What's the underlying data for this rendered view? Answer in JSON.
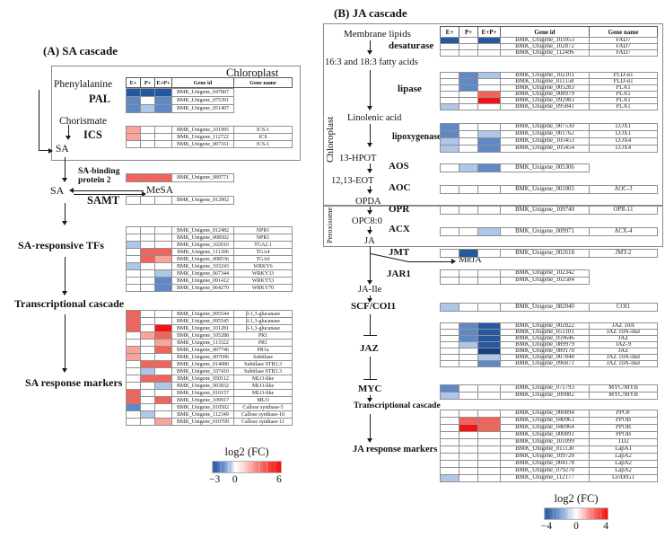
{
  "palette": {
    "w": "#ffffff",
    "b1": "#aec6e8",
    "b2": "#5f89c6",
    "b3": "#2458a0",
    "b4": "#16417e",
    "r1": "#f8a49a",
    "r2": "#f4635a",
    "r3": "#fa1010"
  },
  "figure": {
    "panel_a": {
      "title": "(A) SA cascade",
      "compartment_label": "Chloroplast",
      "header": {
        "e": "E+",
        "p": "P+",
        "ep": "E+P+",
        "gene_id": "Gene id",
        "gene_name": "Gene name"
      },
      "nodes": {
        "phenylalanine": "Phenylalanine",
        "pal": "PAL",
        "chorismate": "Chorismate",
        "ics": "ICS",
        "sa_top": "SA",
        "sa_mid": "SA",
        "sabp2_line1": "SA-binding",
        "sabp2_line2": "protein 2",
        "mesa": "MeSA",
        "samt": "SAMT",
        "tfs": "SA-responsive TFs",
        "cascade": "Transcriptional cascade",
        "markers": "SA response markers"
      },
      "legend": {
        "title": "log2 (FC)",
        "ticks": [
          "−3",
          "0",
          "6"
        ]
      },
      "blocks": {
        "pal": {
          "rows": [
            {
              "id": "BMK_Unigene_047807",
              "heat": [
                "b3",
                "b3",
                "b3"
              ]
            },
            {
              "id": "BMK_Unigene_075391",
              "heat": [
                "b2",
                "w",
                "b2"
              ]
            },
            {
              "id": "BMK_Unigene_051407",
              "heat": [
                "b2",
                "b1",
                "b2"
              ]
            }
          ]
        },
        "ics": {
          "rows": [
            {
              "id": "BMK_Unigene_101995",
              "name": "ICS-1",
              "heat": [
                "r1",
                "w",
                "w"
              ]
            },
            {
              "id": "BMK_Unigene_112722",
              "name": "ICS",
              "heat": [
                "r1",
                "w",
                "w"
              ]
            },
            {
              "id": "BMK_Unigene_007161",
              "name": "ICS-1",
              "heat": [
                "w",
                "w",
                "w"
              ]
            }
          ]
        },
        "sabp2": {
          "rows": [
            {
              "id": "BMK_Unigene_089771",
              "heat": [
                "r2",
                "r2",
                "r2"
              ]
            }
          ]
        },
        "samt": {
          "rows": [
            {
              "id": "BMK_Unigene_012902",
              "heat": [
                "w",
                "w",
                "w"
              ]
            }
          ]
        },
        "tfs": {
          "rows": [
            {
              "id": "BMK_Unigene_012482",
              "name": "NPR1",
              "heat": [
                "w",
                "w",
                "w"
              ]
            },
            {
              "id": "BMK_Unigene_008502",
              "name": "NPR1",
              "heat": [
                "w",
                "w",
                "w"
              ]
            },
            {
              "id": "BMK_Unigene_102016",
              "name": "TGA2.1",
              "heat": [
                "b1",
                "w",
                "w"
              ]
            },
            {
              "id": "BMK_Unigene_111306",
              "name": "TGA4",
              "heat": [
                "w",
                "r2",
                "r2"
              ]
            },
            {
              "id": "BMK_Unigene_008536",
              "name": "TGA6",
              "heat": [
                "w",
                "r2",
                "r1"
              ]
            },
            {
              "id": "BMK_Unigene_103243",
              "name": "WRKY6",
              "heat": [
                "b1",
                "w",
                "w"
              ]
            },
            {
              "id": "BMK_Unigene_067344",
              "name": "WRKY33",
              "heat": [
                "w",
                "w",
                "b1"
              ]
            },
            {
              "id": "BMK_Unigene_091412",
              "name": "WRKY53",
              "heat": [
                "w",
                "w",
                "b2"
              ]
            },
            {
              "id": "BMK_Unigene_064270",
              "name": "WRKY70",
              "heat": [
                "w",
                "w",
                "b2"
              ]
            }
          ]
        },
        "markers": {
          "rows": [
            {
              "id": "BMK_Unigene_095544",
              "name": "β-1,3-glucanase",
              "heat": [
                "r2",
                "w",
                "w"
              ]
            },
            {
              "id": "BMK_Unigene_095545",
              "name": "β-1,3-glucanase",
              "heat": [
                "r2",
                "w",
                "w"
              ]
            },
            {
              "id": "BMK_Unigene_101281",
              "name": "β-1,3-glucanase",
              "heat": [
                "r2",
                "w",
                "r3"
              ]
            },
            {
              "id": "BMK_Unigene_105288",
              "name": "PR1",
              "heat": [
                "w",
                "r1",
                "r2"
              ]
            },
            {
              "id": "BMK_Unigene_113322",
              "name": "PR1",
              "heat": [
                "w",
                "w",
                "r1"
              ]
            },
            {
              "id": "BMK_Unigene_007746",
              "name": "PR1a",
              "heat": [
                "r1",
                "w",
                "r2"
              ]
            },
            {
              "id": "BMK_Unigene_007696",
              "name": "Subtilase",
              "heat": [
                "r1",
                "w",
                "w"
              ]
            },
            {
              "id": "BMK_Unigene_014080",
              "name": "Subtilase STB3.3",
              "heat": [
                "w",
                "r2",
                "r2"
              ]
            },
            {
              "id": "BMK_Unigene_107410",
              "name": "Subtilase STB3.3",
              "heat": [
                "w",
                "b1",
                "w"
              ]
            },
            {
              "id": "BMK_Unigene_050112",
              "name": "MLO-like",
              "heat": [
                "w",
                "r2",
                "r2"
              ]
            },
            {
              "id": "BMK_Unigene_003832",
              "name": "MLO-like",
              "heat": [
                "w",
                "w",
                "b1"
              ]
            },
            {
              "id": "BMK_Unigene_010157",
              "name": "MLO-like",
              "heat": [
                "r2",
                "w",
                "w"
              ]
            },
            {
              "id": "BMK_Unigene_109917",
              "name": "MLO",
              "heat": [
                "r2",
                "w",
                "r2"
              ]
            },
            {
              "id": "BMK_Unigene_010502",
              "name": "Callose synthase-5",
              "heat": [
                "b2",
                "w",
                "w"
              ]
            },
            {
              "id": "BMK_Unigene_112349",
              "name": "Callose synthase-10",
              "heat": [
                "w",
                "b1",
                "w"
              ]
            },
            {
              "id": "BMK_Unigene_010709",
              "name": "Callose synthase-11",
              "heat": [
                "w",
                "w",
                "r1"
              ]
            }
          ]
        }
      }
    },
    "panel_b": {
      "title": "(B) JA cascade",
      "compartment_label_1": "Chloroplast",
      "compartment_label_2": "Peroxisome",
      "header": {
        "e": "E+",
        "p": "P+",
        "ep": "E+P+",
        "gene_id": "Gene id",
        "gene_name": "Gene name"
      },
      "nodes": {
        "membrane_lipids": "Membrane lipids",
        "desaturase": "desaturase",
        "fatty_acids": "16:3 and 18:3 fatty acids",
        "lipase": "lipase",
        "linolenic_acid": "Linolenic acid",
        "lipoxygenase": "lipoxygenase",
        "hpot": "13-HPOT",
        "aos": "AOS",
        "eot": "12,13-EOT",
        "aoc": "AOC",
        "opda": "OPDA",
        "opr": "OPR",
        "opc": "OPC8:0",
        "acx": "ACX",
        "ja": "JA",
        "jmt": "JMT",
        "meja": "MeJA",
        "jar1": "JAR1",
        "ja_ile": "JA-Ile",
        "scf_coi1": "SCF/COI1",
        "jaz": "JAZ",
        "myc": "MYC",
        "cascade": "Transcriptional cascade",
        "markers": "JA response markers"
      },
      "legend": {
        "title": "log2 (FC)",
        "ticks": [
          "−4",
          "0",
          "4"
        ]
      },
      "blocks": {
        "desaturase": {
          "rows": [
            {
              "id": "BMK_Unigene_103953",
              "name": "FAD7",
              "heat": [
                "b3",
                "w",
                "b3"
              ]
            },
            {
              "id": "BMK_Unigene_102872",
              "name": "FAD7",
              "heat": [
                "w",
                "w",
                "w"
              ]
            },
            {
              "id": "BMK_Unigene_112496",
              "name": "FAD7",
              "heat": [
                "w",
                "w",
                "w"
              ]
            }
          ]
        },
        "lipase": {
          "rows": [
            {
              "id": "BMK_Unigene_102101",
              "name": "PLD-α1",
              "heat": [
                "w",
                "b2",
                "b1"
              ]
            },
            {
              "id": "BMK_Unigene_011158",
              "name": "PLD-α1",
              "heat": [
                "w",
                "b2",
                "w"
              ]
            },
            {
              "id": "BMK_Unigene_005283",
              "name": "PLA1",
              "heat": [
                "w",
                "b2",
                "w"
              ]
            },
            {
              "id": "BMK_Unigene_008979",
              "name": "PLA1",
              "heat": [
                "w",
                "w",
                "r2"
              ]
            },
            {
              "id": "BMK_Unigene_092983",
              "name": "PLA1",
              "heat": [
                "w",
                "w",
                "r3"
              ]
            },
            {
              "id": "BMK_Unigene_095841",
              "name": "PLA1",
              "heat": [
                "b1",
                "w",
                "w"
              ]
            }
          ]
        },
        "lipoxygenase": {
          "rows": [
            {
              "id": "BMK_Unigene_007530",
              "name": "LOX1",
              "heat": [
                "b2",
                "w",
                "w"
              ]
            },
            {
              "id": "BMK_Unigene_001762",
              "name": "LOX1",
              "heat": [
                "b2",
                "w",
                "b1"
              ]
            },
            {
              "id": "BMK_Unigene_105453",
              "name": "LOX4",
              "heat": [
                "b1",
                "w",
                "b2"
              ]
            },
            {
              "id": "BMK_Unigene_105454",
              "name": "LOX4",
              "heat": [
                "b1",
                "w",
                "b2"
              ]
            }
          ]
        },
        "aos": {
          "rows": [
            {
              "id": "BMK_Unigene_005306",
              "heat": [
                "w",
                "b1",
                "b2"
              ]
            }
          ]
        },
        "aoc": {
          "rows": [
            {
              "id": "BMK_Unigene_001005",
              "name": "AOC-3",
              "heat": [
                "w",
                "w",
                "w"
              ]
            }
          ]
        },
        "opr": {
          "rows": [
            {
              "id": "BMK_Unigene_109740",
              "name": "OPR-11",
              "heat": [
                "w",
                "w",
                "w"
              ]
            }
          ]
        },
        "acx": {
          "rows": [
            {
              "id": "BMK_Unigene_009971",
              "name": "ACX-4",
              "heat": [
                "w",
                "w",
                "b1"
              ]
            }
          ]
        },
        "jmt": {
          "rows": [
            {
              "id": "BMK_Unigene_002618",
              "name": "JMT-2",
              "heat": [
                "w",
                "b3",
                "w"
              ]
            }
          ]
        },
        "jar1": {
          "rows": [
            {
              "id": "BMK_Unigene_102342",
              "heat": [
                "w",
                "w",
                "w"
              ]
            },
            {
              "id": "BMK_Unigene_102584",
              "heat": [
                "w",
                "w",
                "w"
              ]
            }
          ]
        },
        "coi1": {
          "rows": [
            {
              "id": "BMK_Unigene_082040",
              "name": "COI1",
              "heat": [
                "b1",
                "w",
                "w"
              ]
            }
          ]
        },
        "jaz": {
          "rows": [
            {
              "id": "BMK_Unigene_002822",
              "name": "JAZ 10A",
              "heat": [
                "w",
                "b2",
                "b3"
              ]
            },
            {
              "id": "BMK_Unigene_051101",
              "name": "JAZ 10A-like",
              "heat": [
                "w",
                "b2",
                "b3"
              ]
            },
            {
              "id": "BMK_Unigene_059646",
              "name": "JAZ",
              "heat": [
                "w",
                "b2",
                "b3"
              ]
            },
            {
              "id": "BMK_Unigene_089979",
              "name": "JAZ-9",
              "heat": [
                "w",
                "b1",
                "b3"
              ]
            },
            {
              "id": "BMK_Unigene_089170",
              "name": "JAZ",
              "heat": [
                "w",
                "w",
                "b4"
              ]
            },
            {
              "id": "BMK_Unigene_007848",
              "name": "JAZ 10A-like",
              "heat": [
                "w",
                "w",
                "b1"
              ]
            },
            {
              "id": "BMK_Unigene_096871",
              "name": "JAZ 10A-like",
              "heat": [
                "w",
                "w",
                "b2"
              ]
            }
          ]
        },
        "myc": {
          "rows": [
            {
              "id": "BMK_Unigene_071793",
              "name": "MYC/MYB",
              "heat": [
                "b2",
                "w",
                "w"
              ]
            },
            {
              "id": "BMK_Unigene_100082",
              "name": "MYC/MYB",
              "heat": [
                "b1",
                "w",
                "w"
              ]
            }
          ]
        },
        "markers": {
          "rows": [
            {
              "id": "BMK_Unigene_000894",
              "name": "PPOF",
              "heat": [
                "w",
                "w",
                "w"
              ]
            },
            {
              "id": "BMK_Unigene_040963",
              "name": "PPOB",
              "heat": [
                "w",
                "r2",
                "r2"
              ]
            },
            {
              "id": "BMK_Unigene_040964",
              "name": "PPOB",
              "heat": [
                "w",
                "r3",
                "r2"
              ]
            },
            {
              "id": "BMK_Unigene_000891",
              "name": "PPOB",
              "heat": [
                "w",
                "w",
                "w"
              ]
            },
            {
              "id": "BMK_Unigene_101099",
              "name": "TD2",
              "heat": [
                "w",
                "w",
                "w"
              ]
            },
            {
              "id": "BMK_Unigene_011130",
              "name": "LapA1",
              "heat": [
                "w",
                "w",
                "w"
              ]
            },
            {
              "id": "BMK_Unigene_109728",
              "name": "LapA2",
              "heat": [
                "w",
                "w",
                "w"
              ]
            },
            {
              "id": "BMK_Unigene_004178",
              "name": "LapA2",
              "heat": [
                "w",
                "w",
                "w"
              ]
            },
            {
              "id": "BMK_Unigene_079270",
              "name": "LapA2",
              "heat": [
                "w",
                "w",
                "w"
              ]
            },
            {
              "id": "BMK_Unigene_112177",
              "name": "LeARG1",
              "heat": [
                "b1",
                "w",
                "w"
              ]
            }
          ]
        }
      }
    }
  }
}
